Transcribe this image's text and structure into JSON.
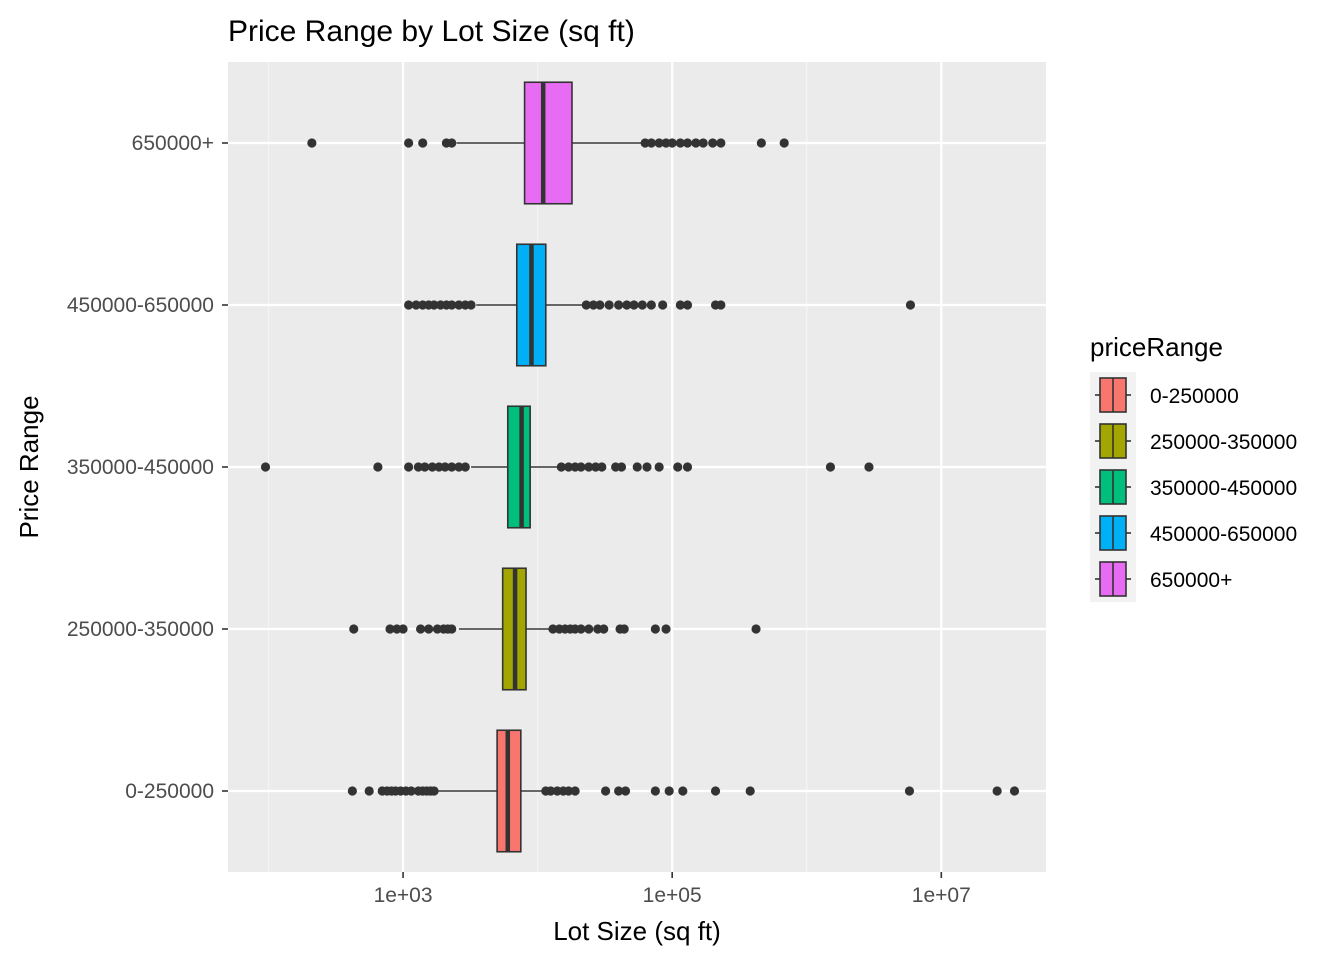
{
  "chart_data": {
    "type": "boxplot",
    "orientation": "horizontal",
    "title": "Price Range by Lot Size (sq ft)",
    "xlabel": "Lot Size (sq ft)",
    "ylabel": "Price Range",
    "x_scale": "log10",
    "xlim": [
      50,
      60000000
    ],
    "x_ticks": [
      {
        "value": 1000,
        "label": "1e+03"
      },
      {
        "value": 100000,
        "label": "1e+05"
      },
      {
        "value": 10000000,
        "label": "1e+07"
      }
    ],
    "categories": [
      "0-250000",
      "250000-350000",
      "350000-450000",
      "450000-650000",
      "650000+"
    ],
    "legend": {
      "title": "priceRange",
      "position": "right"
    },
    "grid": true,
    "colors": {
      "panel_background": "#ebebeb",
      "grid_major": "#ffffff",
      "grid_minor": "#f5f5f5",
      "box_border": "#333333",
      "tick_text": "#4d4d4d"
    },
    "series": [
      {
        "name": "0-250000",
        "color": "#F8766D",
        "q1": 5000,
        "median": 6000,
        "q3": 7500,
        "whisker_low": 1800,
        "whisker_high": 11000,
        "outliers": [
          420,
          560,
          700,
          760,
          820,
          880,
          960,
          1050,
          1150,
          1300,
          1400,
          1500,
          1600,
          1700,
          11500,
          12500,
          14000,
          15500,
          17000,
          19000,
          32000,
          40000,
          45000,
          75000,
          95000,
          120000,
          210000,
          380000,
          5800000,
          26000000,
          35000000
        ]
      },
      {
        "name": "250000-350000",
        "color": "#A3A500",
        "q1": 5500,
        "median": 6800,
        "q3": 8200,
        "whisker_low": 2600,
        "whisker_high": 12500,
        "outliers": [
          430,
          800,
          900,
          1000,
          1350,
          1550,
          1800,
          2000,
          2150,
          2300,
          13000,
          14500,
          16000,
          17500,
          19000,
          21000,
          24000,
          28000,
          31000,
          41000,
          44000,
          75000,
          90000,
          420000
        ]
      },
      {
        "name": "350000-450000",
        "color": "#00BF7D",
        "q1": 6000,
        "median": 7600,
        "q3": 8800,
        "whisker_low": 3200,
        "whisker_high": 14000,
        "outliers": [
          95,
          650,
          1100,
          1300,
          1450,
          1650,
          1850,
          2050,
          2300,
          2600,
          2900,
          15000,
          17000,
          19000,
          21000,
          24000,
          27000,
          30000,
          38000,
          42000,
          55000,
          65000,
          80000,
          110000,
          130000,
          1500000,
          2900000
        ]
      },
      {
        "name": "450000-650000",
        "color": "#00B0F6",
        "q1": 7000,
        "median": 9000,
        "q3": 11500,
        "whisker_low": 3500,
        "whisker_high": 22000,
        "outliers": [
          1100,
          1250,
          1400,
          1550,
          1700,
          1900,
          2100,
          2300,
          2600,
          2900,
          3200,
          23000,
          26000,
          29000,
          34000,
          40000,
          46000,
          52000,
          60000,
          70000,
          85000,
          115000,
          130000,
          210000,
          230000,
          5900000
        ]
      },
      {
        "name": "650000+",
        "color": "#E76BF3",
        "q1": 8000,
        "median": 11000,
        "q3": 18000,
        "whisker_low": 2500,
        "whisker_high": 60000,
        "outliers": [
          210,
          1100,
          1400,
          2100,
          2300,
          63000,
          70000,
          80000,
          90000,
          100000,
          115000,
          130000,
          150000,
          170000,
          200000,
          230000,
          460000,
          680000
        ]
      }
    ]
  }
}
